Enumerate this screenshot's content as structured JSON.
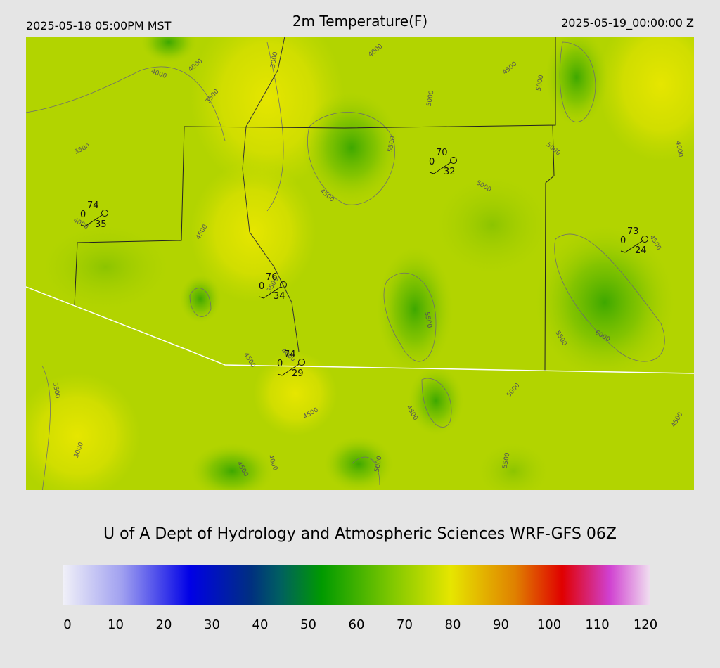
{
  "header": {
    "left": "2025-05-18 05:00PM MST",
    "title": "2m Temperature(F)",
    "right": "2025-05-19_00:00:00 Z"
  },
  "map": {
    "contour_labels": [
      3000,
      4000,
      4000,
      3500,
      3500,
      4000,
      4500,
      5000,
      5000,
      5500,
      5000,
      4000,
      4500,
      5000,
      4500,
      4000,
      4500,
      3500,
      5500,
      6000,
      5500,
      4500,
      4000,
      3500,
      5000,
      4500,
      4500,
      4500,
      3000,
      4000,
      4500,
      5000,
      5500
    ],
    "stations": [
      {
        "temperature": 74,
        "dewpoint": 0,
        "wind": 35
      },
      {
        "temperature": 70,
        "dewpoint": 0,
        "wind": 32
      },
      {
        "temperature": 73,
        "dewpoint": 0,
        "wind": 24
      },
      {
        "temperature": 76,
        "dewpoint": 0,
        "wind": 34
      },
      {
        "temperature": 74,
        "dewpoint": 0,
        "wind": 29
      }
    ]
  },
  "footer": "U of A Dept of Hydrology and Atmospheric Sciences WRF-GFS 06Z",
  "colorbar": {
    "lim": [
      0,
      120
    ],
    "ticks": [
      0,
      10,
      20,
      30,
      40,
      50,
      60,
      70,
      80,
      90,
      100,
      110,
      120
    ]
  }
}
